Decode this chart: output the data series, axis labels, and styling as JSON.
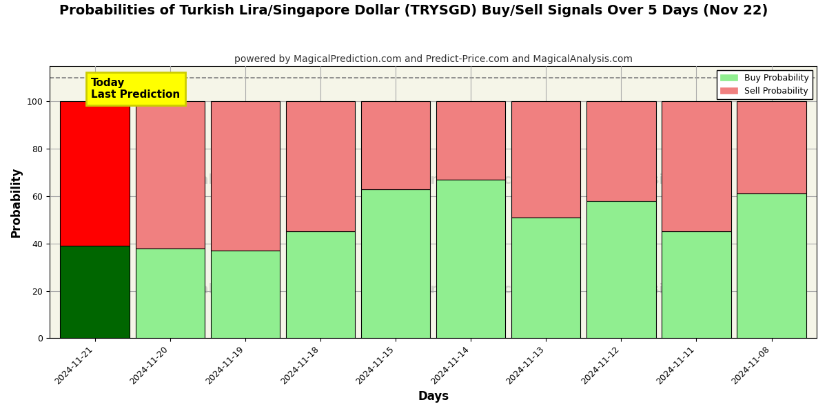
{
  "title": "Probabilities of Turkish Lira/Singapore Dollar (TRYSGD) Buy/Sell Signals Over 5 Days (Nov 22)",
  "subtitle": "powered by MagicalPrediction.com and Predict-Price.com and MagicalAnalysis.com",
  "xlabel": "Days",
  "ylabel": "Probability",
  "categories": [
    "2024-11-21",
    "2024-11-20",
    "2024-11-19",
    "2024-11-18",
    "2024-11-15",
    "2024-11-14",
    "2024-11-13",
    "2024-11-12",
    "2024-11-11",
    "2024-11-08"
  ],
  "buy_values": [
    39,
    38,
    37,
    45,
    63,
    67,
    51,
    58,
    45,
    61
  ],
  "sell_values": [
    61,
    62,
    63,
    55,
    37,
    33,
    49,
    42,
    55,
    39
  ],
  "buy_color_today": "#006600",
  "sell_color_today": "#ff0000",
  "buy_color_rest": "#90ee90",
  "sell_color_rest": "#f08080",
  "bar_width": 0.92,
  "ylim": [
    0,
    115
  ],
  "yticks": [
    0,
    20,
    40,
    60,
    80,
    100
  ],
  "dashed_line_y": 110,
  "legend_labels": [
    "Buy Probability",
    "Sell Probability"
  ],
  "today_label": "Today\nLast Prediction",
  "background_color": "#ffffff",
  "plot_bg_color": "#f5f5e8",
  "grid_color": "#aaaaaa",
  "title_fontsize": 14,
  "subtitle_fontsize": 10,
  "axis_label_fontsize": 12,
  "tick_fontsize": 9
}
